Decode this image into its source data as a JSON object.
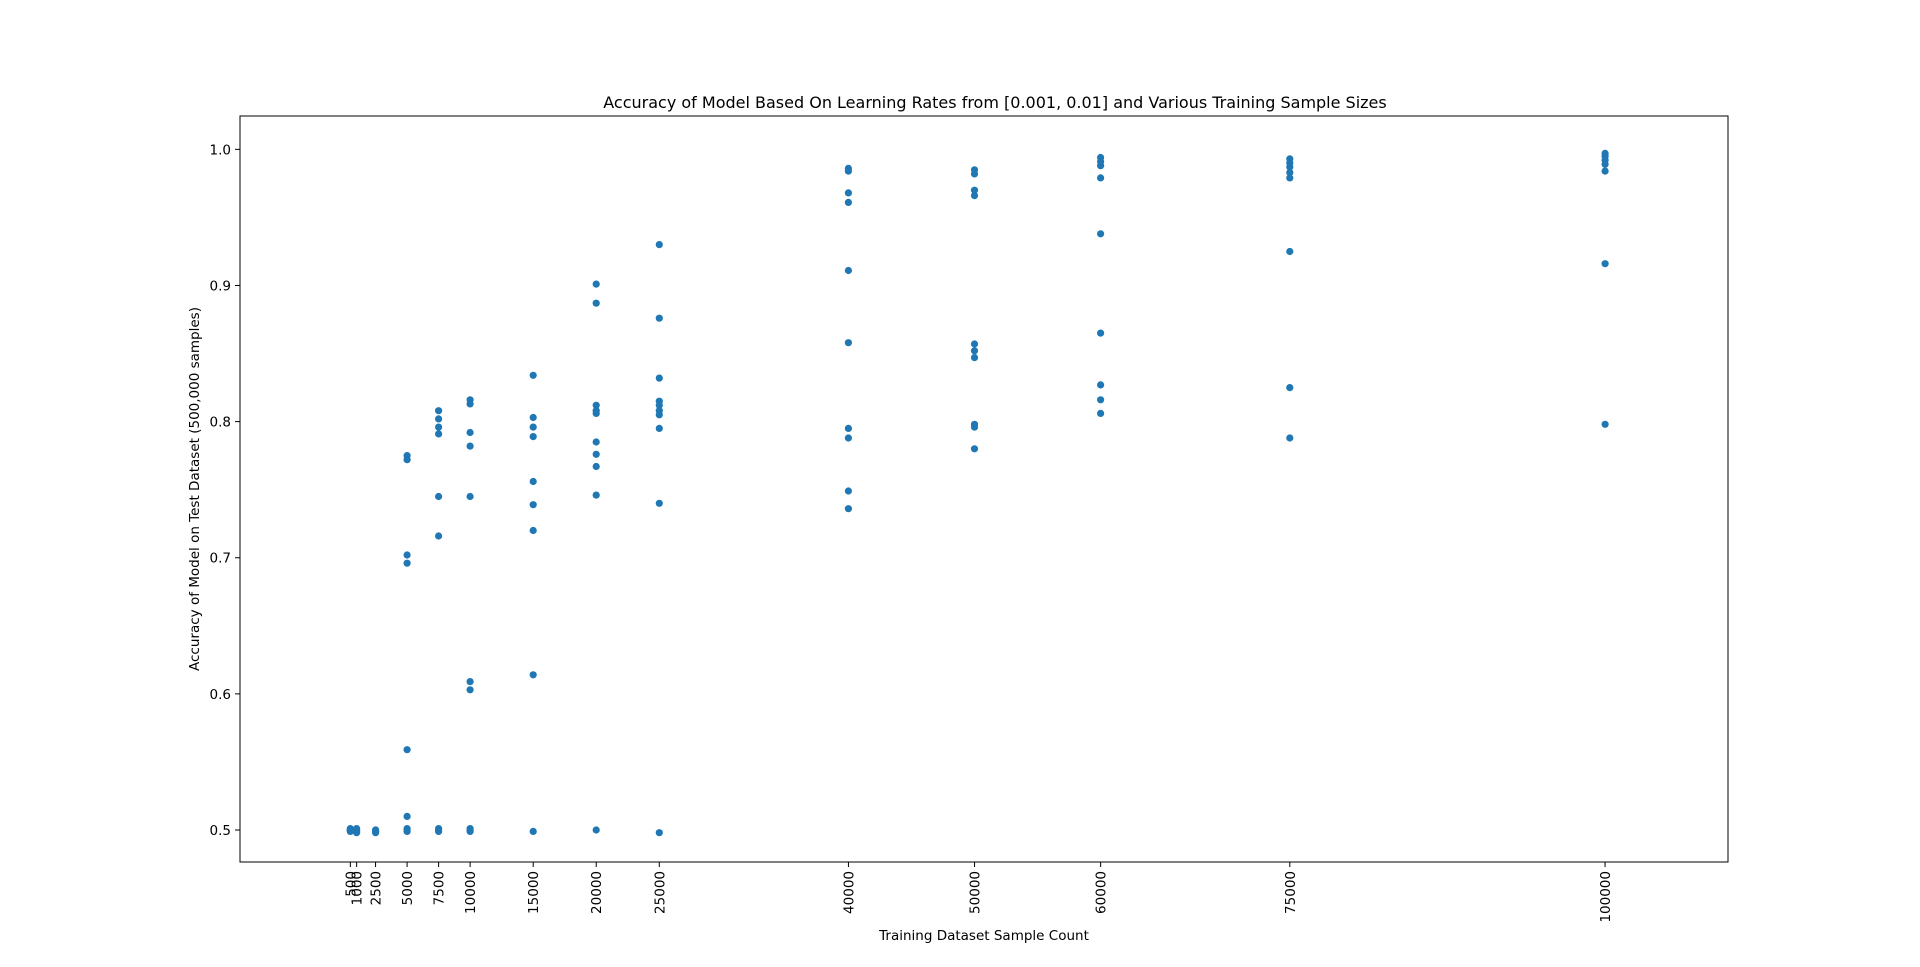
{
  "chart_data": {
    "type": "scatter",
    "title": "Accuracy of Model Based On Learning Rates from [0.001, 0.01] and Various Training Sample Sizes",
    "xlabel": "Training Dataset Sample Count",
    "ylabel": "Accuracy of Model on Test Dataset (500,000 samples)",
    "xlim": [
      -8250,
      109750
    ],
    "ylim": [
      0.4765,
      1.0245
    ],
    "x_ticks": [
      500,
      1000,
      2500,
      5000,
      7500,
      10000,
      15000,
      20000,
      25000,
      40000,
      50000,
      60000,
      75000,
      100000
    ],
    "y_ticks": [
      0.5,
      0.6,
      0.7,
      0.8,
      0.9,
      1.0
    ],
    "y_tick_labels": [
      "0.5",
      "0.6",
      "0.7",
      "0.8",
      "0.9",
      "1.0"
    ],
    "grid": false,
    "legend": "none",
    "marker_color": "#1f77b4",
    "points": [
      [
        500,
        0.5
      ],
      [
        500,
        0.5
      ],
      [
        500,
        0.501
      ],
      [
        500,
        0.499
      ],
      [
        500,
        0.5
      ],
      [
        1000,
        0.5
      ],
      [
        1000,
        0.501
      ],
      [
        1000,
        0.499
      ],
      [
        1000,
        0.5
      ],
      [
        1000,
        0.498
      ],
      [
        2500,
        0.5
      ],
      [
        2500,
        0.499
      ],
      [
        2500,
        0.498
      ],
      [
        2500,
        0.5
      ],
      [
        5000,
        0.775
      ],
      [
        5000,
        0.772
      ],
      [
        5000,
        0.702
      ],
      [
        5000,
        0.696
      ],
      [
        5000,
        0.559
      ],
      [
        5000,
        0.51
      ],
      [
        5000,
        0.501
      ],
      [
        5000,
        0.5
      ],
      [
        5000,
        0.499
      ],
      [
        7500,
        0.808
      ],
      [
        7500,
        0.802
      ],
      [
        7500,
        0.796
      ],
      [
        7500,
        0.791
      ],
      [
        7500,
        0.745
      ],
      [
        7500,
        0.716
      ],
      [
        7500,
        0.501
      ],
      [
        7500,
        0.5
      ],
      [
        7500,
        0.499
      ],
      [
        10000,
        0.816
      ],
      [
        10000,
        0.813
      ],
      [
        10000,
        0.792
      ],
      [
        10000,
        0.782
      ],
      [
        10000,
        0.745
      ],
      [
        10000,
        0.609
      ],
      [
        10000,
        0.603
      ],
      [
        10000,
        0.501
      ],
      [
        10000,
        0.5
      ],
      [
        10000,
        0.499
      ],
      [
        15000,
        0.834
      ],
      [
        15000,
        0.803
      ],
      [
        15000,
        0.796
      ],
      [
        15000,
        0.789
      ],
      [
        15000,
        0.756
      ],
      [
        15000,
        0.739
      ],
      [
        15000,
        0.72
      ],
      [
        15000,
        0.614
      ],
      [
        15000,
        0.499
      ],
      [
        20000,
        0.901
      ],
      [
        20000,
        0.887
      ],
      [
        20000,
        0.812
      ],
      [
        20000,
        0.808
      ],
      [
        20000,
        0.806
      ],
      [
        20000,
        0.785
      ],
      [
        20000,
        0.776
      ],
      [
        20000,
        0.767
      ],
      [
        20000,
        0.746
      ],
      [
        20000,
        0.5
      ],
      [
        25000,
        0.93
      ],
      [
        25000,
        0.876
      ],
      [
        25000,
        0.832
      ],
      [
        25000,
        0.815
      ],
      [
        25000,
        0.812
      ],
      [
        25000,
        0.808
      ],
      [
        25000,
        0.805
      ],
      [
        25000,
        0.795
      ],
      [
        25000,
        0.74
      ],
      [
        25000,
        0.498
      ],
      [
        40000,
        0.986
      ],
      [
        40000,
        0.984
      ],
      [
        40000,
        0.968
      ],
      [
        40000,
        0.961
      ],
      [
        40000,
        0.911
      ],
      [
        40000,
        0.858
      ],
      [
        40000,
        0.795
      ],
      [
        40000,
        0.788
      ],
      [
        40000,
        0.749
      ],
      [
        40000,
        0.736
      ],
      [
        50000,
        0.985
      ],
      [
        50000,
        0.982
      ],
      [
        50000,
        0.97
      ],
      [
        50000,
        0.966
      ],
      [
        50000,
        0.857
      ],
      [
        50000,
        0.852
      ],
      [
        50000,
        0.847
      ],
      [
        50000,
        0.798
      ],
      [
        50000,
        0.796
      ],
      [
        50000,
        0.78
      ],
      [
        60000,
        0.994
      ],
      [
        60000,
        0.991
      ],
      [
        60000,
        0.988
      ],
      [
        60000,
        0.979
      ],
      [
        60000,
        0.938
      ],
      [
        60000,
        0.865
      ],
      [
        60000,
        0.827
      ],
      [
        60000,
        0.816
      ],
      [
        60000,
        0.806
      ],
      [
        75000,
        0.993
      ],
      [
        75000,
        0.99
      ],
      [
        75000,
        0.987
      ],
      [
        75000,
        0.983
      ],
      [
        75000,
        0.979
      ],
      [
        75000,
        0.925
      ],
      [
        75000,
        0.825
      ],
      [
        75000,
        0.788
      ],
      [
        100000,
        0.997
      ],
      [
        100000,
        0.995
      ],
      [
        100000,
        0.992
      ],
      [
        100000,
        0.989
      ],
      [
        100000,
        0.984
      ],
      [
        100000,
        0.916
      ],
      [
        100000,
        0.798
      ]
    ]
  }
}
